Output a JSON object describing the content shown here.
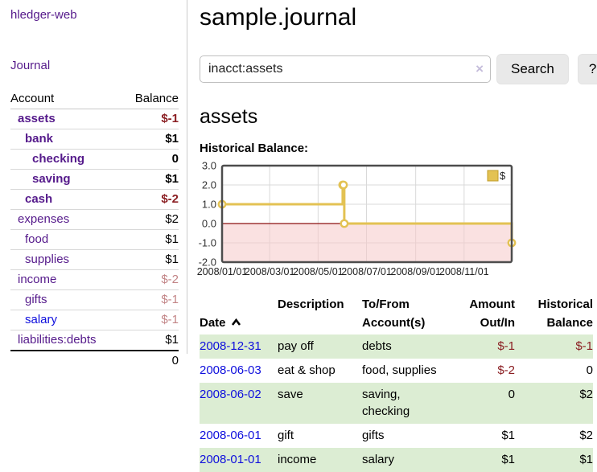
{
  "colors": {
    "link_purple": "#551a8b",
    "link_blue": "#0f0fdd",
    "negative_strong": "#8b1f23",
    "negative_faint": "#c28486",
    "row_stripe_green": "#dcedd3",
    "chart_gold": "#e3c253",
    "chart_gold_border": "#c09c28",
    "chart_negative_region": "#f6c8c8",
    "chart_zero_line": "#8c1010",
    "chart_border": "#4d4d4d",
    "chart_grid": "#d9d9d9"
  },
  "sidebar": {
    "app_title": "hledger-web",
    "journal_link": "Journal",
    "table": {
      "account_header": "Account",
      "balance_header": "Balance",
      "rows": [
        {
          "name": "assets",
          "balance": "$-1",
          "indent": 1,
          "bold": true,
          "balance_class": "neg-strong",
          "name_class": "purple"
        },
        {
          "name": "bank",
          "balance": "$1",
          "indent": 2,
          "bold": true,
          "balance_class": "",
          "name_class": "purple"
        },
        {
          "name": "checking",
          "balance": "0",
          "indent": 3,
          "bold": true,
          "balance_class": "",
          "name_class": "purple"
        },
        {
          "name": "saving",
          "balance": "$1",
          "indent": 3,
          "bold": true,
          "balance_class": "",
          "name_class": "purple"
        },
        {
          "name": "cash",
          "balance": "$-2",
          "indent": 2,
          "bold": true,
          "balance_class": "neg-strong",
          "name_class": "purple"
        },
        {
          "name": "expenses",
          "balance": "$2",
          "indent": 1,
          "bold": false,
          "balance_class": "",
          "name_class": "purple"
        },
        {
          "name": "food",
          "balance": "$1",
          "indent": 2,
          "bold": false,
          "balance_class": "",
          "name_class": "purple"
        },
        {
          "name": "supplies",
          "balance": "$1",
          "indent": 2,
          "bold": false,
          "balance_class": "",
          "name_class": "purple"
        },
        {
          "name": "income",
          "balance": "$-2",
          "indent": 1,
          "bold": false,
          "balance_class": "neg-faint",
          "name_class": "purple"
        },
        {
          "name": "gifts",
          "balance": "$-1",
          "indent": 2,
          "bold": false,
          "balance_class": "neg-faint",
          "name_class": "purple"
        },
        {
          "name": "salary",
          "balance": "$-1",
          "indent": 2,
          "bold": false,
          "balance_class": "neg-faint",
          "name_class": "blue"
        },
        {
          "name": "liabilities:debts",
          "balance": "$1",
          "indent": 1,
          "bold": false,
          "balance_class": "",
          "name_class": "purple"
        }
      ],
      "total": "0"
    }
  },
  "main": {
    "title": "sample.journal",
    "search": {
      "value": "inacct:assets",
      "clear_label": "×",
      "button_label": "Search",
      "help_label": "?"
    },
    "account_title": "assets",
    "section_label": "Historical Balance:"
  },
  "chart_data": {
    "type": "line",
    "title": "Historical Balance",
    "legend": [
      {
        "label": "$",
        "color": "#e3c253"
      }
    ],
    "x_domain_days": [
      0,
      365
    ],
    "y_domain": [
      -2,
      3
    ],
    "y_ticks": [
      3.0,
      2.0,
      1.0,
      0.0,
      -1.0,
      -2.0
    ],
    "x_ticks": [
      {
        "day": 0,
        "label": "2008/01/01"
      },
      {
        "day": 60,
        "label": "2008/03/01"
      },
      {
        "day": 121,
        "label": "2008/05/01"
      },
      {
        "day": 182,
        "label": "2008/07/01"
      },
      {
        "day": 244,
        "label": "2008/09/01"
      },
      {
        "day": 305,
        "label": "2008/11/01"
      }
    ],
    "series": [
      {
        "name": "$",
        "style": "step-after",
        "points": [
          {
            "day": 0,
            "date": "2008-01-01",
            "value": 1
          },
          {
            "day": 152,
            "date": "2008-06-01",
            "value": 2
          },
          {
            "day": 153,
            "date": "2008-06-02",
            "value": 2
          },
          {
            "day": 154,
            "date": "2008-06-03",
            "value": 0
          },
          {
            "day": 365,
            "date": "2008-12-31",
            "value": -1
          }
        ]
      }
    ]
  },
  "register": {
    "headers": {
      "date": "Date",
      "description": "Description",
      "tofrom": "To/From\nAccount(s)",
      "amount": "Amount\nOut/In",
      "balance": "Historical\nBalance"
    },
    "rows": [
      {
        "date": "2008-12-31",
        "description": "pay off",
        "accounts": "debts",
        "amount": "$-1",
        "amount_class": "neg-strong",
        "balance": "$-1",
        "balance_class": "neg-strong"
      },
      {
        "date": "2008-06-03",
        "description": "eat & shop",
        "accounts": "food, supplies",
        "amount": "$-2",
        "amount_class": "neg-strong",
        "balance": "0",
        "balance_class": ""
      },
      {
        "date": "2008-06-02",
        "description": "save",
        "accounts": "saving,\nchecking",
        "amount": "0",
        "amount_class": "",
        "balance": "$2",
        "balance_class": ""
      },
      {
        "date": "2008-06-01",
        "description": "gift",
        "accounts": "gifts",
        "amount": "$1",
        "amount_class": "",
        "balance": "$2",
        "balance_class": ""
      },
      {
        "date": "2008-01-01",
        "description": "income",
        "accounts": "salary",
        "amount": "$1",
        "amount_class": "",
        "balance": "$1",
        "balance_class": ""
      }
    ]
  }
}
